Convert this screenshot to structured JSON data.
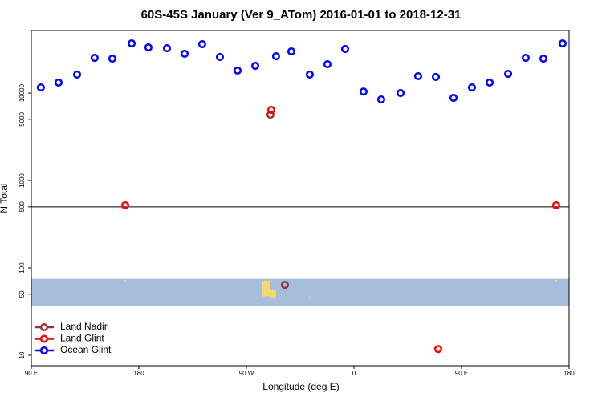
{
  "chart_data": {
    "type": "scatter",
    "title": "60S-45S January (Ver 9_ATom)   2016-01-01 to 2018-12-31",
    "x_label": "Longitude (deg E)",
    "y_label": "N Total",
    "xlim": [
      90,
      540
    ],
    "ylim": [
      7.6,
      52000
    ],
    "log_y": true,
    "xticks": [
      {
        "value": 90,
        "label": "90 E"
      },
      180,
      {
        "value": 270,
        "label": "90 W"
      },
      {
        "value": 360,
        "label": "0"
      },
      {
        "value": 450,
        "label": "90 E"
      },
      {
        "value": 540,
        "label": "180"
      }
    ],
    "yticks": [
      10,
      50,
      100,
      500,
      1000,
      5000,
      10000
    ],
    "hline": 500,
    "shaded_band": [
      37,
      75
    ],
    "band_color": "#a6bddb",
    "legend": "bottom-left",
    "series": [
      {
        "name": "Land Nadir",
        "color": "#993333",
        "x": [
          290.1,
          302.2
        ],
        "values": [
          5650,
          64
        ]
      },
      {
        "name": "Land Glint",
        "color": "#ff0000",
        "x": [
          168.6,
          290.8,
          430.5,
          529.2
        ],
        "values": [
          520,
          6420,
          11.8,
          520
        ]
      },
      {
        "name": "Ocean Glint",
        "color": "#0000ff",
        "x": [
          98,
          112.8,
          128.3,
          143,
          157.8,
          174,
          188,
          203.5,
          218.3,
          233,
          247.8,
          262.6,
          277.4,
          294.8,
          307.6,
          323,
          337.8,
          352.6,
          368,
          382.8,
          399,
          413.7,
          428.5,
          443.3,
          458.7,
          473.5,
          489,
          503.7,
          518.5,
          534.6
        ],
        "values": [
          11600,
          13200,
          16300,
          25300,
          24800,
          37000,
          33300,
          32600,
          28200,
          36300,
          25900,
          18100,
          20500,
          26400,
          30000,
          16300,
          21400,
          32000,
          10400,
          8450,
          10000,
          15600,
          15300,
          8800,
          11600,
          13200,
          16600,
          25300,
          24800,
          37000
        ]
      }
    ]
  }
}
